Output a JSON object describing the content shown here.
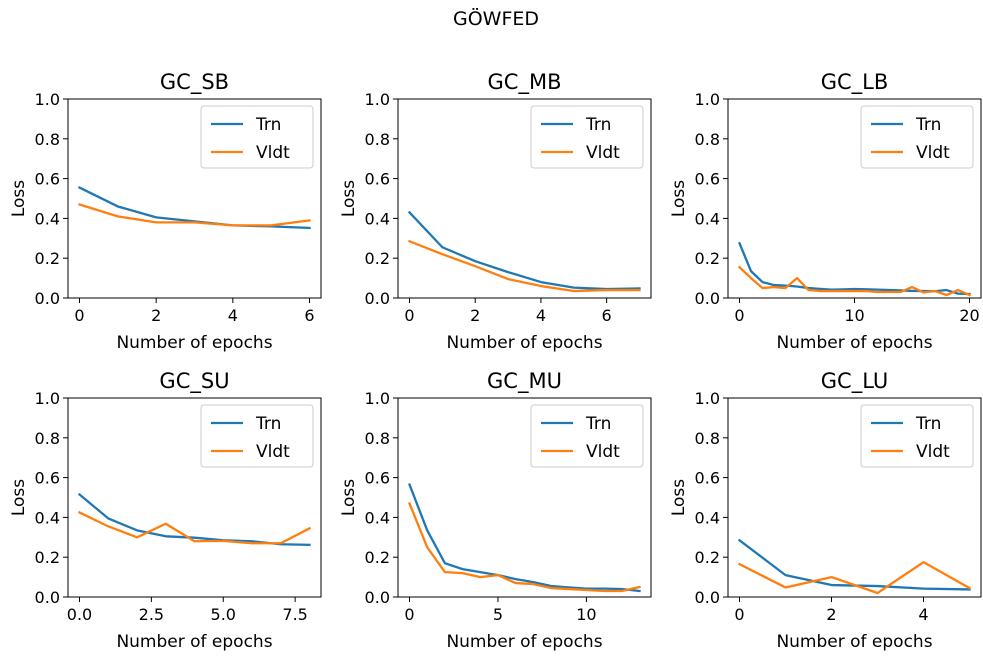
{
  "figure_title": "GÖWFED",
  "chart_data": [
    {
      "type": "line",
      "title": "GC_SB",
      "xlabel": "Number of epochs",
      "ylabel": "Loss",
      "xlim": [
        -0.3,
        6.3
      ],
      "ylim": [
        0,
        1.0
      ],
      "xticks": [
        0,
        2,
        4,
        6
      ],
      "xtick_labels": [
        "0",
        "2",
        "4",
        "6"
      ],
      "yticks": [
        0.0,
        0.2,
        0.4,
        0.6,
        0.8,
        1.0
      ],
      "ytick_labels": [
        "0.0",
        "0.2",
        "0.4",
        "0.6",
        "0.8",
        "1.0"
      ],
      "legend": "top-right",
      "grid": false,
      "series": [
        {
          "name": "Trn",
          "color": "#1f77b4",
          "x": [
            0,
            1,
            2,
            3,
            4,
            5,
            6
          ],
          "y": [
            0.555,
            0.46,
            0.405,
            0.385,
            0.365,
            0.36,
            0.352
          ]
        },
        {
          "name": "Vldt",
          "color": "#ff7f0e",
          "x": [
            0,
            1,
            2,
            3,
            4,
            5,
            6
          ],
          "y": [
            0.47,
            0.41,
            0.38,
            0.38,
            0.365,
            0.365,
            0.39
          ]
        }
      ]
    },
    {
      "type": "line",
      "title": "GC_MB",
      "xlabel": "Number of epochs",
      "ylabel": "Loss",
      "xlim": [
        -0.35,
        7.35
      ],
      "ylim": [
        0,
        1.0
      ],
      "xticks": [
        0,
        2,
        4,
        6
      ],
      "xtick_labels": [
        "0",
        "2",
        "4",
        "6"
      ],
      "yticks": [
        0.0,
        0.2,
        0.4,
        0.6,
        0.8,
        1.0
      ],
      "ytick_labels": [
        "0.0",
        "0.2",
        "0.4",
        "0.6",
        "0.8",
        "1.0"
      ],
      "legend": "top-right",
      "grid": false,
      "series": [
        {
          "name": "Trn",
          "color": "#1f77b4",
          "x": [
            0,
            1,
            2,
            3,
            4,
            5,
            6,
            7
          ],
          "y": [
            0.43,
            0.255,
            0.185,
            0.13,
            0.08,
            0.052,
            0.045,
            0.048
          ]
        },
        {
          "name": "Vldt",
          "color": "#ff7f0e",
          "x": [
            0,
            1,
            2,
            3,
            4,
            5,
            6,
            7
          ],
          "y": [
            0.285,
            0.22,
            0.16,
            0.095,
            0.06,
            0.035,
            0.04,
            0.04
          ]
        }
      ]
    },
    {
      "type": "line",
      "title": "GC_LB",
      "xlabel": "Number of epochs",
      "ylabel": "Loss",
      "xlim": [
        -1.0,
        21.0
      ],
      "ylim": [
        0,
        1.0
      ],
      "xticks": [
        0,
        10,
        20
      ],
      "xtick_labels": [
        "0",
        "10",
        "20"
      ],
      "yticks": [
        0.0,
        0.2,
        0.4,
        0.6,
        0.8,
        1.0
      ],
      "ytick_labels": [
        "0.0",
        "0.2",
        "0.4",
        "0.6",
        "0.8",
        "1.0"
      ],
      "legend": "top-right",
      "grid": false,
      "series": [
        {
          "name": "Trn",
          "color": "#1f77b4",
          "x": [
            0,
            1,
            2,
            3,
            4,
            5,
            6,
            7,
            8,
            9,
            10,
            11,
            12,
            13,
            14,
            15,
            16,
            17,
            18,
            19,
            20
          ],
          "y": [
            0.275,
            0.135,
            0.08,
            0.065,
            0.062,
            0.058,
            0.05,
            0.046,
            0.042,
            0.043,
            0.045,
            0.044,
            0.042,
            0.04,
            0.038,
            0.036,
            0.035,
            0.034,
            0.04,
            0.022,
            0.02
          ]
        },
        {
          "name": "Vldt",
          "color": "#ff7f0e",
          "x": [
            0,
            1,
            2,
            3,
            4,
            5,
            6,
            7,
            8,
            9,
            10,
            11,
            12,
            13,
            14,
            15,
            16,
            17,
            18,
            19,
            20
          ],
          "y": [
            0.155,
            0.1,
            0.05,
            0.055,
            0.05,
            0.1,
            0.04,
            0.035,
            0.035,
            0.035,
            0.035,
            0.035,
            0.03,
            0.03,
            0.03,
            0.055,
            0.028,
            0.035,
            0.015,
            0.04,
            0.015
          ]
        }
      ]
    },
    {
      "type": "line",
      "title": "GC_SU",
      "xlabel": "Number of epochs",
      "ylabel": "Loss",
      "xlim": [
        -0.4,
        8.4
      ],
      "ylim": [
        0,
        1.0
      ],
      "xticks": [
        0,
        2.5,
        5,
        7.5
      ],
      "xtick_labels": [
        "0.0",
        "2.5",
        "5.0",
        "7.5"
      ],
      "yticks": [
        0.0,
        0.2,
        0.4,
        0.6,
        0.8,
        1.0
      ],
      "ytick_labels": [
        "0.0",
        "0.2",
        "0.4",
        "0.6",
        "0.8",
        "1.0"
      ],
      "legend": "top-right",
      "grid": false,
      "series": [
        {
          "name": "Trn",
          "color": "#1f77b4",
          "x": [
            0,
            1,
            2,
            3,
            4,
            5,
            6,
            7,
            8
          ],
          "y": [
            0.515,
            0.395,
            0.335,
            0.305,
            0.298,
            0.285,
            0.28,
            0.265,
            0.262
          ]
        },
        {
          "name": "Vldt",
          "color": "#ff7f0e",
          "x": [
            0,
            1,
            2,
            3,
            4,
            5,
            6,
            7,
            8
          ],
          "y": [
            0.425,
            0.355,
            0.3,
            0.368,
            0.28,
            0.282,
            0.27,
            0.27,
            0.345
          ]
        }
      ]
    },
    {
      "type": "line",
      "title": "GC_MU",
      "xlabel": "Number of epochs",
      "ylabel": "Loss",
      "xlim": [
        -0.65,
        13.65
      ],
      "ylim": [
        0,
        1.0
      ],
      "xticks": [
        0,
        5,
        10
      ],
      "xtick_labels": [
        "0",
        "5",
        "10"
      ],
      "yticks": [
        0.0,
        0.2,
        0.4,
        0.6,
        0.8,
        1.0
      ],
      "ytick_labels": [
        "0.0",
        "0.2",
        "0.4",
        "0.6",
        "0.8",
        "1.0"
      ],
      "legend": "top-right",
      "grid": false,
      "series": [
        {
          "name": "Trn",
          "color": "#1f77b4",
          "x": [
            0,
            1,
            2,
            3,
            4,
            5,
            6,
            7,
            8,
            9,
            10,
            11,
            12,
            13
          ],
          "y": [
            0.565,
            0.335,
            0.17,
            0.14,
            0.125,
            0.11,
            0.09,
            0.075,
            0.055,
            0.048,
            0.042,
            0.042,
            0.04,
            0.03
          ]
        },
        {
          "name": "Vldt",
          "color": "#ff7f0e",
          "x": [
            0,
            1,
            2,
            3,
            4,
            5,
            6,
            7,
            8,
            9,
            10,
            11,
            12,
            13
          ],
          "y": [
            0.47,
            0.25,
            0.125,
            0.12,
            0.1,
            0.11,
            0.07,
            0.065,
            0.045,
            0.04,
            0.035,
            0.03,
            0.03,
            0.05
          ]
        }
      ]
    },
    {
      "type": "line",
      "title": "GC_LU",
      "xlabel": "Number of epochs",
      "ylabel": "Loss",
      "xlim": [
        -0.25,
        5.25
      ],
      "ylim": [
        0,
        1.0
      ],
      "xticks": [
        0,
        2,
        4
      ],
      "xtick_labels": [
        "0",
        "2",
        "4"
      ],
      "yticks": [
        0.0,
        0.2,
        0.4,
        0.6,
        0.8,
        1.0
      ],
      "ytick_labels": [
        "0.0",
        "0.2",
        "0.4",
        "0.6",
        "0.8",
        "1.0"
      ],
      "legend": "top-right",
      "grid": false,
      "series": [
        {
          "name": "Trn",
          "color": "#1f77b4",
          "x": [
            0,
            1,
            2,
            3,
            4,
            5
          ],
          "y": [
            0.285,
            0.11,
            0.06,
            0.055,
            0.042,
            0.038
          ]
        },
        {
          "name": "Vldt",
          "color": "#ff7f0e",
          "x": [
            0,
            1,
            2,
            3,
            4,
            5
          ],
          "y": [
            0.165,
            0.048,
            0.1,
            0.02,
            0.175,
            0.045
          ]
        }
      ]
    }
  ]
}
